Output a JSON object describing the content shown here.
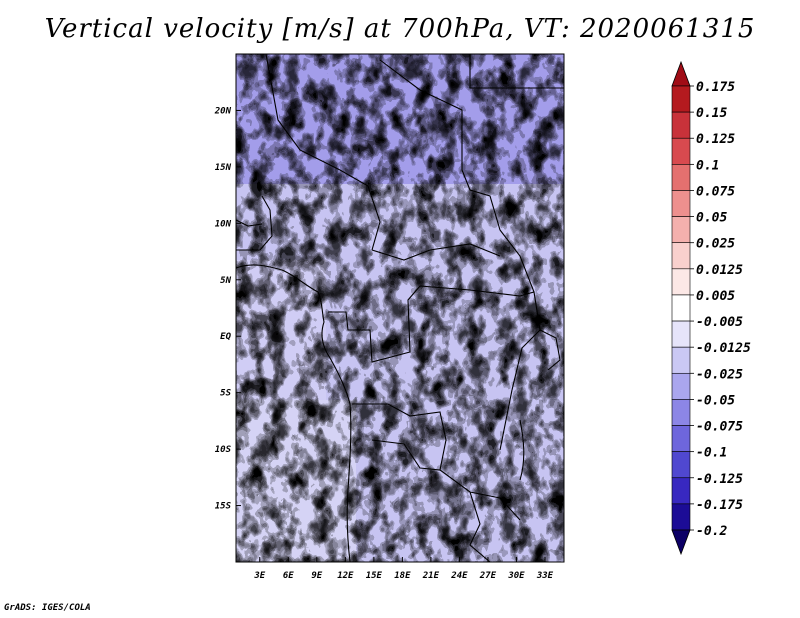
{
  "title": "Vertical velocity [m/s] at 700hPa, VT: 2020061315",
  "credit": "GrADS: IGES/COLA",
  "map": {
    "lat_labels": [
      "20N",
      "15N",
      "10N",
      "5N",
      "EQ",
      "5S",
      "10S",
      "15S"
    ],
    "lat_values": [
      20,
      15,
      10,
      5,
      0,
      -5,
      -10,
      -15
    ],
    "lon_labels": [
      "3E",
      "6E",
      "9E",
      "12E",
      "15E",
      "18E",
      "21E",
      "24E",
      "27E",
      "30E",
      "33E"
    ],
    "lon_values": [
      3,
      6,
      9,
      12,
      15,
      18,
      21,
      24,
      27,
      30,
      33
    ],
    "lat_range": [
      -20,
      25
    ],
    "lon_range": [
      0.5,
      35
    ]
  },
  "colorbar": {
    "labels": [
      "0.175",
      "0.15",
      "0.125",
      "0.1",
      "0.075",
      "0.05",
      "0.025",
      "0.0125",
      "0.005",
      "-0.005",
      "-0.0125",
      "-0.025",
      "-0.05",
      "-0.075",
      "-0.1",
      "-0.125",
      "-0.175",
      "-0.2"
    ],
    "colors": [
      "#a00c16",
      "#b41a1f",
      "#c8323a",
      "#d84a4f",
      "#e4706f",
      "#ee908e",
      "#f4b0ad",
      "#f9d0cd",
      "#fce8e6",
      "#ffffff",
      "#e6e4fa",
      "#cac8f4",
      "#aaa6ee",
      "#8c86e6",
      "#6e66dc",
      "#5048d0",
      "#3828c0",
      "#1c0c96",
      "#0c0066"
    ]
  },
  "colors": {
    "positive": "#d84a4f",
    "negative": "#6e66dc",
    "border": "#000000"
  }
}
